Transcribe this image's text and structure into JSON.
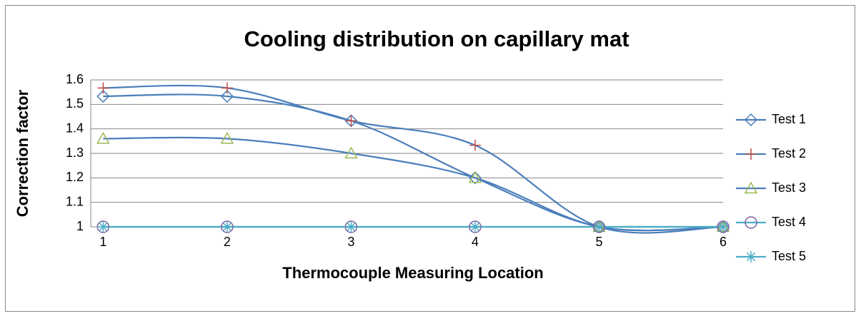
{
  "chart_data": {
    "type": "line",
    "title": "Cooling distribution on capillary mat",
    "xlabel": "Thermocouple Measuring Location",
    "ylabel": "Correction factor",
    "x": [
      1,
      2,
      3,
      4,
      5,
      6
    ],
    "xlim": [
      0.9,
      6
    ],
    "xticks": [
      1,
      2,
      3,
      4,
      5,
      6
    ],
    "ylim": [
      1,
      1.6
    ],
    "yticks": [
      1,
      1.1,
      1.2,
      1.3,
      1.4,
      1.5,
      1.6
    ],
    "grid": true,
    "smooth": true,
    "legend": "right",
    "series": [
      {
        "name": "Test 1",
        "color": "#4a7ebb",
        "marker": "diamond",
        "marker_color": "#4a7ebb",
        "values": [
          1.533,
          1.533,
          1.433,
          1.2,
          1.0,
          1.0
        ]
      },
      {
        "name": "Test 2",
        "color": "#4a7ebb",
        "marker": "plus",
        "marker_color": "#be4b48",
        "values": [
          1.567,
          1.567,
          1.433,
          1.333,
          1.0,
          1.0
        ]
      },
      {
        "name": "Test 3",
        "color": "#4a7ebb",
        "marker": "triangle",
        "marker_color": "#98b954",
        "values": [
          1.36,
          1.36,
          1.3,
          1.2,
          1.0,
          1.0
        ]
      },
      {
        "name": "Test 4",
        "color": "#4bacc6",
        "marker": "circle",
        "marker_color": "#7d60a0",
        "values": [
          1,
          1,
          1,
          1,
          1,
          1
        ]
      },
      {
        "name": "Test 5",
        "color": "#4bacc6",
        "marker": "asterisk",
        "marker_color": "#4bacc6",
        "values": [
          1,
          1,
          1,
          1,
          1,
          1
        ]
      }
    ]
  }
}
